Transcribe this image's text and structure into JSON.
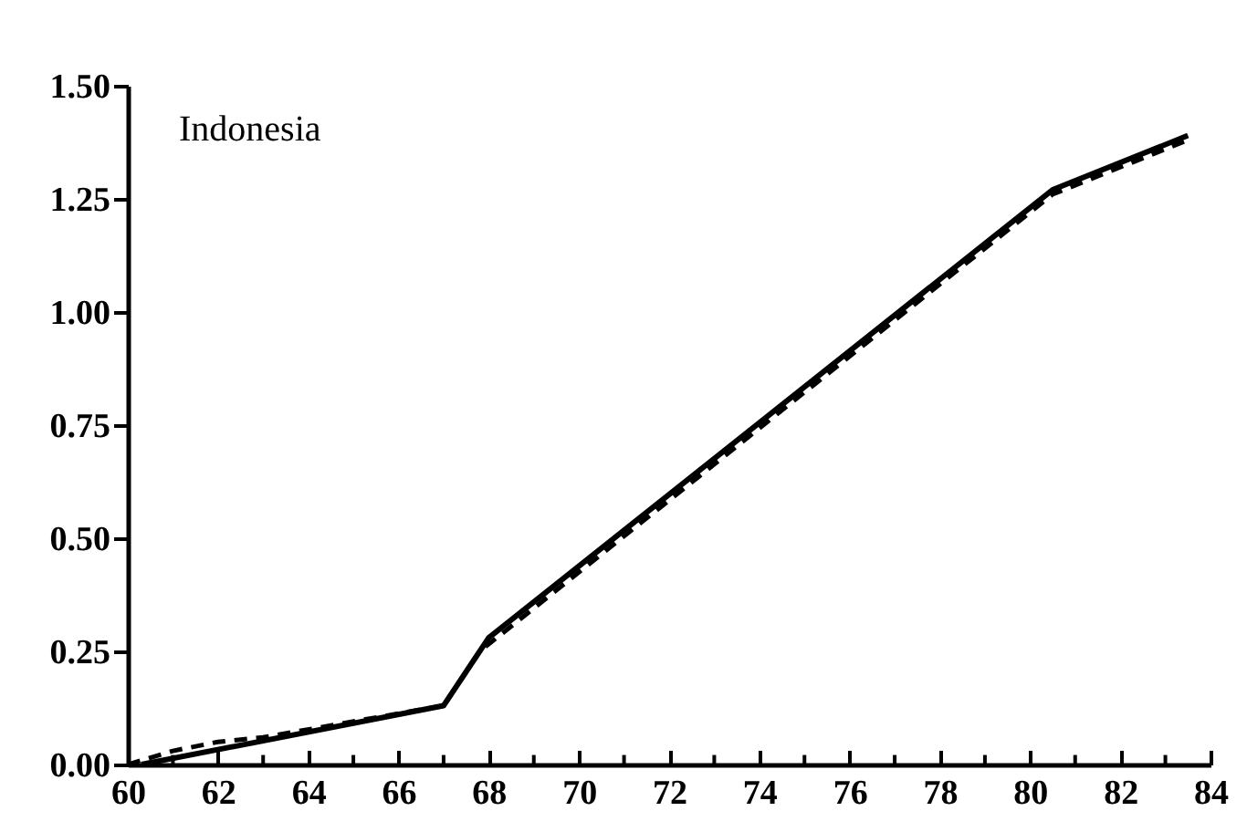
{
  "chart_data": {
    "type": "line",
    "annotations": [
      "Indonesia"
    ],
    "series": [
      {
        "x": [
          60.3,
          67.0,
          68.0,
          80.5,
          83.5
        ],
        "values": [
          0.0,
          0.13,
          0.28,
          1.27,
          1.39
        ],
        "color": "#000000",
        "line_style": "solid"
      },
      {
        "x": [
          60.0,
          61.0,
          62.0,
          63.0,
          67.0,
          67.8,
          80.5,
          83.5
        ],
        "values": [
          0.0,
          0.03,
          0.05,
          0.06,
          0.13,
          0.25,
          1.26,
          1.38
        ],
        "color": "#000000",
        "line_style": "dashed"
      }
    ],
    "xlim": [
      60,
      84
    ],
    "xticks": [
      60,
      {
        "value": 61,
        "label": null
      },
      62,
      {
        "value": 63,
        "label": null
      },
      64,
      {
        "value": 65,
        "label": null
      },
      66,
      {
        "value": 67,
        "label": null
      },
      68,
      {
        "value": 69,
        "label": null
      },
      70,
      {
        "value": 71,
        "label": null
      },
      72,
      {
        "value": 73,
        "label": null
      },
      74,
      {
        "value": 75,
        "label": null
      },
      76,
      {
        "value": 77,
        "label": null
      },
      78,
      {
        "value": 79,
        "label": null
      },
      80,
      {
        "value": 81,
        "label": null
      },
      82,
      {
        "value": 83,
        "label": null
      },
      84
    ],
    "ylim": [
      0,
      1.5
    ],
    "yticks": [
      {
        "value": 0,
        "label": "0.00"
      },
      {
        "value": 0.25,
        "label": "0.25"
      },
      {
        "value": 0.5,
        "label": "0.50"
      },
      {
        "value": 0.75,
        "label": "0.75"
      },
      {
        "value": 1,
        "label": "1.00"
      },
      {
        "value": 1.25,
        "label": "1.25"
      },
      {
        "value": 1.5,
        "label": "1.50"
      }
    ],
    "grid": false,
    "marker": "none"
  }
}
